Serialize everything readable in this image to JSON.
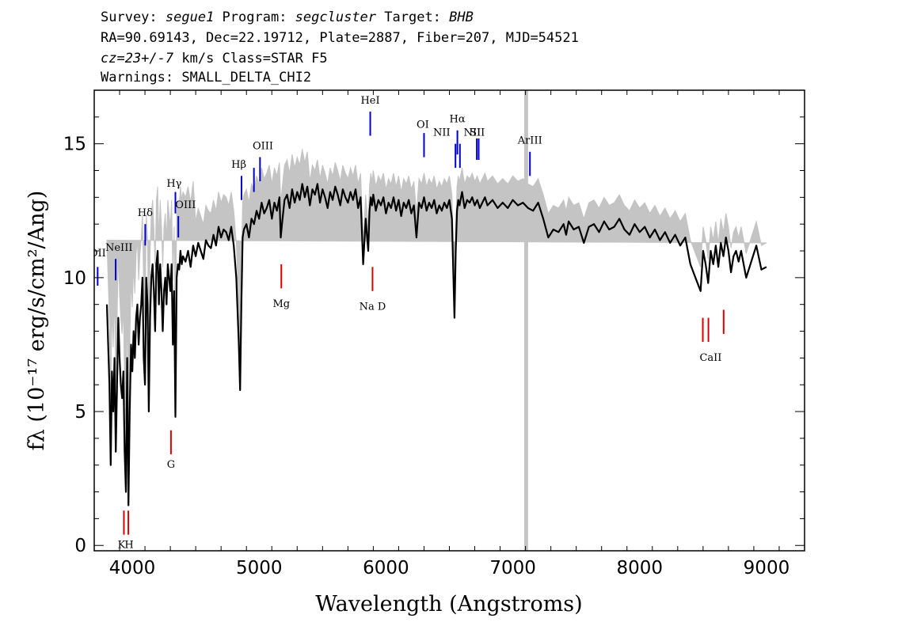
{
  "header": {
    "line1": {
      "survey_label": "Survey: ",
      "survey": "segue1",
      "program_label": " Program: ",
      "program": "segcluster",
      "target_label": " Target: ",
      "target": "BHB"
    },
    "line2": "RA=90.69143, Dec=22.19712, Plate=2887, Fiber=207, MJD=54521",
    "line3": {
      "cz": "cz=23+/-7",
      "rest": " km/s Class=STAR F5"
    },
    "line4": "Warnings: SMALL_DELTA_CHI2"
  },
  "colors": {
    "flux": "#000000",
    "error_band": "#c4c4c4",
    "emission_marker": "#0000cc",
    "absorption_marker": "#dd0000",
    "masked_column": "#c4c4c4"
  },
  "chart_data": {
    "type": "line",
    "title": "",
    "xlabel": "Wavelength (Angstroms)",
    "ylabel": "fλ (10⁻¹⁷ erg/s/cm²/Ang)",
    "xlim": [
      3700,
      9300
    ],
    "ylim": [
      -0.2,
      17
    ],
    "x_ticks": [
      4000,
      5000,
      6000,
      7000,
      8000,
      9000
    ],
    "x_tick_labels": [
      "4000",
      "5000",
      "6000",
      "7000",
      "8000",
      "9000"
    ],
    "y_ticks": [
      0,
      5,
      10,
      15
    ],
    "y_tick_labels": [
      "0",
      "5",
      "10",
      "15"
    ],
    "grid": false,
    "masked_wavelength": 7105,
    "series": [
      {
        "x": [
          3800,
          3810,
          3820,
          3830,
          3840,
          3850,
          3860,
          3870,
          3880,
          3890,
          3900,
          3910,
          3920,
          3930,
          3940,
          3950,
          3960,
          3970,
          3980,
          3990,
          4000,
          4010,
          4020,
          4030,
          4040,
          4050,
          4060,
          4070,
          4080,
          4090,
          4100,
          4110,
          4120,
          4130,
          4140,
          4150,
          4160,
          4170,
          4180,
          4190,
          4200,
          4210,
          4220,
          4230,
          4240,
          4250,
          4260,
          4270,
          4280,
          4290,
          4300,
          4310,
          4320,
          4330,
          4340,
          4350,
          4360,
          4370,
          4380,
          4390,
          4400,
          4420,
          4440,
          4460,
          4480,
          4500,
          4520,
          4540,
          4560,
          4580,
          4600,
          4620,
          4640,
          4660,
          4680,
          4700,
          4720,
          4740,
          4760,
          4780,
          4800,
          4820,
          4840,
          4850,
          4860,
          4870,
          4880,
          4900,
          4920,
          4940,
          4960,
          4980,
          5000,
          5020,
          5040,
          5060,
          5080,
          5100,
          5120,
          5140,
          5160,
          5170,
          5180,
          5200,
          5220,
          5240,
          5260,
          5280,
          5300,
          5320,
          5340,
          5360,
          5380,
          5400,
          5420,
          5440,
          5460,
          5480,
          5500,
          5520,
          5540,
          5560,
          5580,
          5600,
          5620,
          5640,
          5660,
          5680,
          5700,
          5720,
          5740,
          5760,
          5780,
          5800,
          5820,
          5840,
          5860,
          5870,
          5880,
          5890,
          5900,
          5920,
          5940,
          5960,
          5980,
          6000,
          6020,
          6040,
          6060,
          6080,
          6100,
          6120,
          6140,
          6160,
          6180,
          6200,
          6220,
          6240,
          6260,
          6280,
          6300,
          6320,
          6340,
          6360,
          6380,
          6400,
          6420,
          6440,
          6460,
          6480,
          6500,
          6520,
          6540,
          6550,
          6560,
          6570,
          6580,
          6600,
          6620,
          6640,
          6660,
          6680,
          6700,
          6720,
          6740,
          6760,
          6780,
          6800,
          6840,
          6880,
          6920,
          6960,
          7000,
          7040,
          7080,
          7120,
          7160,
          7200,
          7240,
          7280,
          7320,
          7360,
          7400,
          7420,
          7440,
          7480,
          7520,
          7560,
          7600,
          7640,
          7680,
          7720,
          7760,
          7800,
          7840,
          7880,
          7920,
          7960,
          8000,
          8040,
          8080,
          8120,
          8160,
          8200,
          8240,
          8280,
          8320,
          8360,
          8400,
          8440,
          8480,
          8500,
          8520,
          8540,
          8560,
          8580,
          8600,
          8620,
          8640,
          8660,
          8680,
          8700,
          8720,
          8740,
          8760,
          8780,
          8800,
          8840,
          8880,
          8920,
          8960,
          9000,
          9040,
          9080,
          9120,
          9160,
          9180
        ],
        "flux": [
          9.0,
          7.5,
          6.0,
          3.0,
          6.5,
          5.0,
          7.0,
          3.5,
          6.0,
          8.5,
          7.0,
          6.0,
          5.5,
          6.5,
          3.5,
          2.0,
          7.0,
          1.5,
          5.0,
          7.5,
          6.5,
          8.0,
          7.0,
          8.5,
          9.0,
          7.5,
          8.5,
          9.0,
          10.0,
          7.0,
          6.0,
          10.0,
          9.0,
          5.0,
          8.5,
          10.0,
          10.5,
          9.5,
          8.0,
          10.5,
          11.0,
          9.0,
          10.5,
          9.5,
          8.0,
          9.5,
          10.0,
          9.0,
          10.5,
          10.0,
          9.5,
          10.5,
          7.5,
          9.5,
          4.8,
          10.0,
          10.5,
          10.3,
          11.0,
          10.5,
          10.8,
          10.6,
          11.0,
          10.4,
          11.2,
          10.8,
          11.3,
          11.0,
          10.7,
          11.4,
          11.2,
          11.1,
          11.6,
          11.2,
          11.9,
          11.5,
          11.8,
          11.7,
          11.4,
          11.9,
          11.2,
          10.0,
          7.5,
          5.8,
          9.0,
          11.5,
          11.8,
          12.0,
          11.5,
          12.2,
          12.0,
          12.5,
          12.2,
          12.8,
          12.4,
          12.6,
          12.9,
          12.2,
          12.8,
          12.5,
          13.0,
          11.5,
          12.0,
          12.9,
          13.1,
          12.6,
          13.3,
          12.8,
          13.2,
          12.9,
          13.5,
          13.0,
          13.4,
          12.7,
          13.3,
          13.1,
          13.5,
          12.8,
          13.3,
          13.0,
          12.6,
          13.2,
          12.9,
          13.4,
          13.1,
          12.7,
          13.3,
          13.0,
          12.8,
          13.2,
          12.9,
          13.3,
          12.6,
          13.0,
          10.5,
          12.2,
          11.0,
          12.5,
          13.0,
          12.7,
          13.1,
          12.5,
          12.9,
          12.7,
          13.0,
          12.4,
          12.8,
          12.6,
          13.0,
          12.5,
          12.9,
          12.3,
          12.8,
          12.6,
          12.9,
          12.4,
          12.7,
          11.5,
          12.8,
          12.6,
          13.0,
          12.5,
          12.8,
          12.6,
          12.9,
          12.4,
          12.7,
          12.5,
          12.8,
          12.6,
          12.9,
          12.2,
          8.5,
          11.0,
          12.5,
          12.9,
          12.7,
          13.2,
          12.6,
          12.9,
          12.8,
          13.0,
          12.7,
          12.9,
          12.6,
          12.8,
          13.0,
          12.7,
          12.9,
          12.6,
          12.8,
          12.6,
          12.9,
          12.7,
          12.8,
          12.6,
          12.5,
          12.8,
          12.2,
          11.5,
          11.8,
          11.7,
          12.0,
          11.6,
          12.1,
          11.8,
          11.9,
          11.3,
          11.9,
          12.0,
          11.7,
          12.1,
          11.8,
          11.9,
          12.2,
          11.8,
          11.6,
          12.0,
          11.7,
          11.9,
          11.5,
          11.8,
          11.4,
          11.7,
          11.3,
          11.6,
          11.2,
          11.5,
          10.5,
          10.0,
          9.5,
          11.0,
          10.5,
          9.8,
          11.0,
          10.5,
          11.2,
          10.4,
          11.3,
          10.8,
          11.5,
          11.0,
          10.2,
          10.8,
          11.0,
          10.6,
          11.0,
          10.0,
          10.6,
          11.2,
          10.3,
          10.4
        ]
      }
    ],
    "line_markers": [
      {
        "label": "OII",
        "x": 3727,
        "kind": "emission",
        "y_bottom": 9.7,
        "y_top": 10.4
      },
      {
        "label": "NeIII",
        "x": 3869,
        "kind": "emission",
        "y_bottom": 9.9,
        "y_top": 10.7
      },
      {
        "label": "Hδ",
        "x": 4102,
        "kind": "emission",
        "y_bottom": 11.2,
        "y_top": 12.0
      },
      {
        "label": "Hγ",
        "x": 4340,
        "kind": "emission",
        "y_bottom": 12.4,
        "y_top": 13.2
      },
      {
        "label": "OIII",
        "x": 4363,
        "kind": "emission",
        "y_bottom": 11.5,
        "y_top": 12.3
      },
      {
        "label": "Hβ",
        "x": 4861,
        "kind": "emission",
        "y_bottom": 12.9,
        "y_top": 13.8
      },
      {
        "label": "OIII",
        "x": 4959,
        "kind": "emission",
        "y_bottom": 13.2,
        "y_top": 14.1
      },
      {
        "label": "OIII",
        "x": 5007,
        "kind": "emission",
        "y_bottom": 13.6,
        "y_top": 14.5
      },
      {
        "label": "HeI",
        "x": 5876,
        "kind": "emission",
        "y_bottom": 15.3,
        "y_top": 16.2
      },
      {
        "label": "OI",
        "x": 6300,
        "kind": "emission",
        "y_bottom": 14.5,
        "y_top": 15.4
      },
      {
        "label": "NII",
        "x": 6548,
        "kind": "emission",
        "y_bottom": 14.1,
        "y_top": 15.0
      },
      {
        "label": "Hα",
        "x": 6563,
        "kind": "emission",
        "y_bottom": 14.6,
        "y_top": 15.5
      },
      {
        "label": "NII",
        "x": 6583,
        "kind": "emission",
        "y_bottom": 14.1,
        "y_top": 15.0
      },
      {
        "label": "SII",
        "x": 6716,
        "kind": "emission",
        "y_bottom": 14.4,
        "y_top": 15.2
      },
      {
        "label": "SII",
        "x": 6731,
        "kind": "emission",
        "y_bottom": 14.4,
        "y_top": 15.2
      },
      {
        "label": "ArIII",
        "x": 7135,
        "kind": "emission",
        "y_bottom": 13.8,
        "y_top": 14.7
      },
      {
        "label": "K",
        "x": 3934,
        "kind": "absorption",
        "y_bottom": 0.4,
        "y_top": 1.3
      },
      {
        "label": "H",
        "x": 3969,
        "kind": "absorption",
        "y_bottom": 0.4,
        "y_top": 1.3
      },
      {
        "label": "G",
        "x": 4305,
        "kind": "absorption",
        "y_bottom": 3.4,
        "y_top": 4.3
      },
      {
        "label": "Mg",
        "x": 5175,
        "kind": "absorption",
        "y_bottom": 9.6,
        "y_top": 10.5
      },
      {
        "label": "Na D",
        "x": 5894,
        "kind": "absorption",
        "y_bottom": 9.5,
        "y_top": 10.4
      },
      {
        "label": "CaII",
        "x": 8498,
        "kind": "absorption",
        "y_bottom": 7.6,
        "y_top": 8.5
      },
      {
        "label": "CaII",
        "x": 8542,
        "kind": "absorption",
        "y_bottom": 7.6,
        "y_top": 8.5
      },
      {
        "label": "CaII",
        "x": 8662,
        "kind": "absorption",
        "y_bottom": 7.9,
        "y_top": 8.8
      }
    ],
    "marker_labels": [
      {
        "text": "OII",
        "x": 3727,
        "y": 10.8,
        "clip": true
      },
      {
        "text": "NeIII",
        "x": 3895,
        "y": 11.0
      },
      {
        "text": "Hδ",
        "x": 4102,
        "y": 12.3
      },
      {
        "text": "Hγ",
        "x": 4330,
        "y": 13.4
      },
      {
        "text": "OIII",
        "x": 4420,
        "y": 12.6
      },
      {
        "text": "Hβ",
        "x": 4840,
        "y": 14.1
      },
      {
        "text": "OIII",
        "x": 5030,
        "y": 14.8
      },
      {
        "text": "HeI",
        "x": 5876,
        "y": 16.5
      },
      {
        "text": "OI",
        "x": 6290,
        "y": 15.6
      },
      {
        "text": "NII",
        "x": 6440,
        "y": 15.3
      },
      {
        "text": "Hα",
        "x": 6563,
        "y": 15.8
      },
      {
        "text": "NII",
        "x": 6680,
        "y": 15.3
      },
      {
        "text": "SII",
        "x": 6720,
        "y": 15.3
      },
      {
        "text": "ArIII",
        "x": 7135,
        "y": 15.0
      },
      {
        "text": "K",
        "x": 3915,
        "y": -0.1
      },
      {
        "text": "H",
        "x": 3975,
        "y": -0.1
      },
      {
        "text": "G",
        "x": 4305,
        "y": 2.9
      },
      {
        "text": "Mg",
        "x": 5175,
        "y": 8.9
      },
      {
        "text": "Na D",
        "x": 5894,
        "y": 8.8
      },
      {
        "text": "CaII",
        "x": 8560,
        "y": 6.9
      }
    ]
  }
}
